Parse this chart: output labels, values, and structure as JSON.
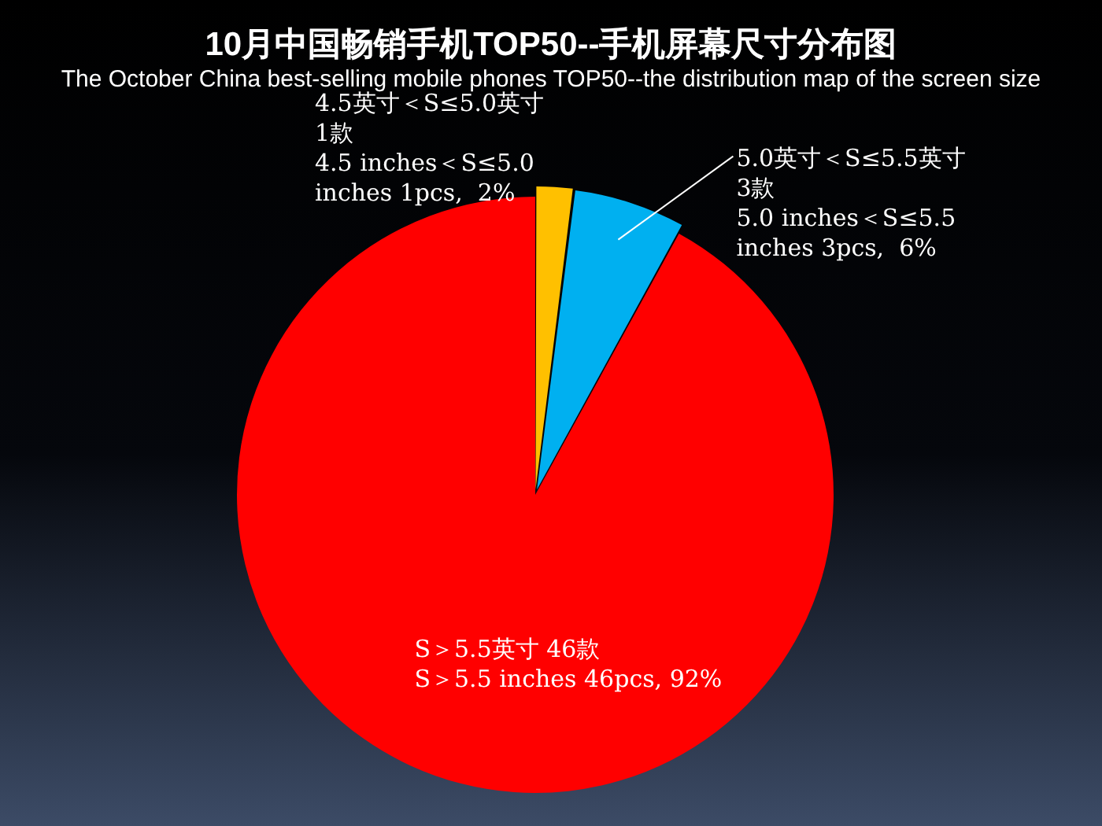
{
  "chart_data": {
    "type": "pie",
    "title": "10月中国畅销手机TOP50--手机屏幕尺寸分布图",
    "subtitle": "The October China best-selling mobile phones TOP50--the distribution map of the screen size",
    "categories": [
      "4.5英寸＜S≤5.0英寸 1款\n4.5 inches＜S≤5.0 inches 1pcs,  2%",
      "5.0英寸＜S≤5.5英寸 3款\n5.0 inches＜S≤5.5 inches 3pcs,  6%",
      "S＞5.5英寸 46款\nS＞5.5 inches 46pcs, 92%"
    ],
    "values": [
      1,
      3,
      46
    ],
    "colors": [
      "#ffc000",
      "#00b0f0",
      "#ff0000"
    ],
    "legend": false
  }
}
